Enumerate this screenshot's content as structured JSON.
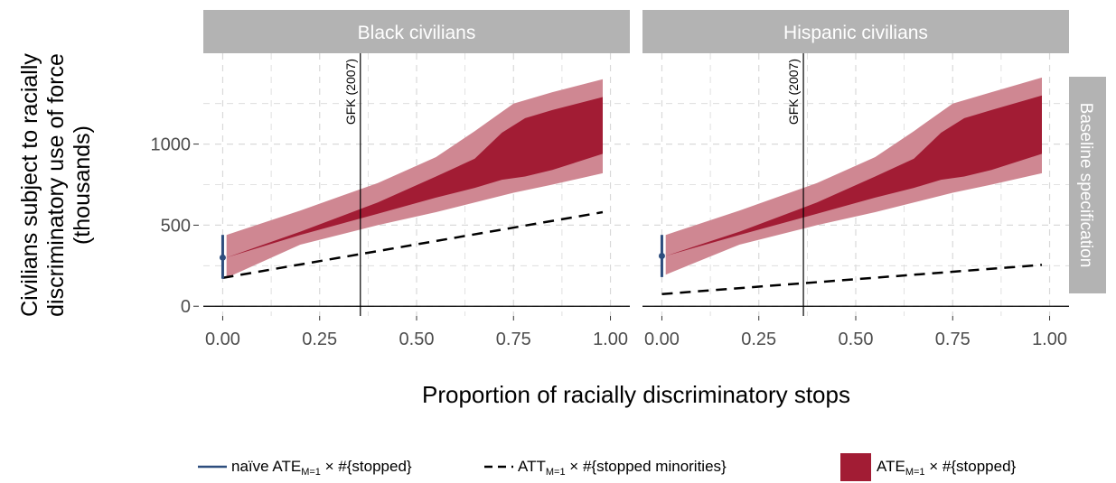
{
  "chart_data": {
    "type": "area",
    "ylabel_lines": [
      "Civilians subject to racially",
      "discriminatory use of force",
      "(thousands)"
    ],
    "xlabel": "Proportion of racially discriminatory stops",
    "row_strip": "Baseline specification",
    "x_ticks": [
      "0.00",
      "0.25",
      "0.50",
      "0.75",
      "1.00"
    ],
    "y_ticks": [
      "0",
      "500",
      "1000"
    ],
    "x_range": [
      -0.05,
      1.05
    ],
    "y_range": [
      -60,
      1560
    ],
    "colors": {
      "outer_band": "#cf8792",
      "inner_band": "#a21c34",
      "naive": "#2e4e7e",
      "att": "#000000",
      "strip_bg": "#b3b3b3",
      "strip_text": "#ffffff",
      "grid": "#d9d9d9"
    },
    "panels": [
      {
        "strip": "Black civilians",
        "gfk_label": "GFK (2007)",
        "gfk_x": 0.355,
        "naive": {
          "x": 0.0,
          "point": 300,
          "low": 170,
          "high": 440
        },
        "att_line": {
          "x": [
            0.0,
            0.98
          ],
          "y": [
            175,
            580
          ]
        },
        "outer_band": {
          "x": [
            0.01,
            0.2,
            0.4,
            0.55,
            0.65,
            0.75,
            0.85,
            0.98
          ],
          "low": [
            175,
            380,
            500,
            580,
            640,
            700,
            750,
            820
          ],
          "high": [
            440,
            590,
            760,
            920,
            1080,
            1250,
            1320,
            1400
          ]
        },
        "inner_band": {
          "x": [
            0.01,
            0.2,
            0.4,
            0.55,
            0.65,
            0.72,
            0.78,
            0.85,
            0.98
          ],
          "low": [
            300,
            440,
            570,
            670,
            730,
            780,
            800,
            840,
            940
          ],
          "high": [
            300,
            460,
            640,
            800,
            910,
            1070,
            1160,
            1210,
            1290
          ]
        }
      },
      {
        "strip": "Hispanic civilians",
        "gfk_label": "GFK (2007)",
        "gfk_x": 0.365,
        "naive": {
          "x": 0.0,
          "point": 310,
          "low": 180,
          "high": 440
        },
        "att_line": {
          "x": [
            0.0,
            0.98
          ],
          "y": [
            75,
            255
          ]
        },
        "outer_band": {
          "x": [
            0.01,
            0.2,
            0.4,
            0.55,
            0.65,
            0.75,
            0.85,
            0.98
          ],
          "low": [
            195,
            380,
            500,
            580,
            640,
            700,
            750,
            820
          ],
          "high": [
            440,
            590,
            760,
            920,
            1080,
            1250,
            1320,
            1410
          ]
        },
        "inner_band": {
          "x": [
            0.01,
            0.2,
            0.4,
            0.55,
            0.65,
            0.72,
            0.78,
            0.85,
            0.98
          ],
          "low": [
            310,
            440,
            570,
            670,
            730,
            780,
            800,
            840,
            940
          ],
          "high": [
            310,
            460,
            640,
            800,
            910,
            1070,
            1160,
            1210,
            1300
          ]
        }
      }
    ],
    "legend": {
      "naive": {
        "pre": "naïve ATE",
        "sub": "M=1",
        "post": "× #{stopped}"
      },
      "att": {
        "pre": "ATT",
        "sub": "M=1",
        "post": "× #{stopped minorities}"
      },
      "ate": {
        "pre": "ATE",
        "sub": "M=1",
        "post": "× #{stopped}"
      }
    }
  }
}
